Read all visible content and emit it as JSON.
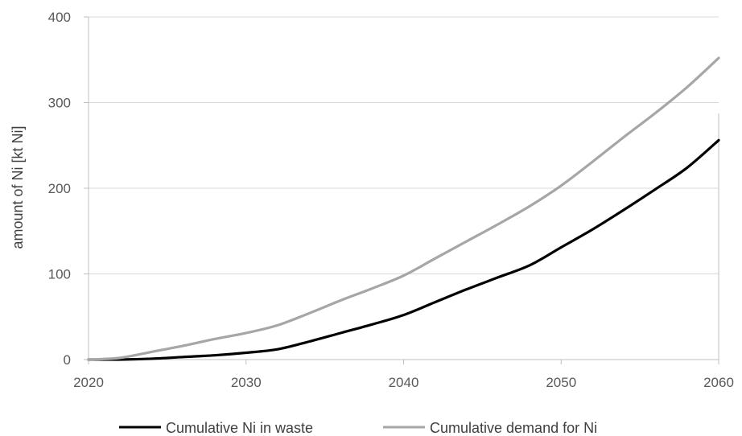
{
  "chart_data": {
    "type": "line",
    "title": "",
    "xlabel": "",
    "ylabel": "amount of Ni [kt Ni]",
    "xlim": [
      2020,
      2060
    ],
    "ylim": [
      0,
      400
    ],
    "x_ticks": [
      2020,
      2030,
      2040,
      2050,
      2060
    ],
    "y_ticks": [
      0,
      100,
      200,
      300,
      400
    ],
    "grid": "horizontal",
    "legend_position": "bottom",
    "series": [
      {
        "name": "Cumulative Ni in waste",
        "color": "#000000",
        "x": [
          2020,
          2022,
          2024,
          2026,
          2028,
          2030,
          2032,
          2034,
          2036,
          2038,
          2040,
          2042,
          2044,
          2046,
          2048,
          2050,
          2052,
          2054,
          2056,
          2058,
          2060
        ],
        "values": [
          0,
          0,
          1,
          3,
          5,
          8,
          12,
          21,
          31,
          41,
          52,
          67,
          82,
          96,
          110,
          131,
          152,
          175,
          199,
          224,
          256
        ]
      },
      {
        "name": "Cumulative demand for Ni",
        "color": "#a6a6a6",
        "x": [
          2020,
          2022,
          2024,
          2026,
          2028,
          2030,
          2032,
          2034,
          2036,
          2038,
          2040,
          2042,
          2044,
          2046,
          2048,
          2050,
          2052,
          2054,
          2056,
          2058,
          2060
        ],
        "values": [
          0,
          2,
          9,
          16,
          24,
          31,
          40,
          54,
          69,
          83,
          98,
          118,
          138,
          158,
          179,
          203,
          231,
          260,
          288,
          318,
          352
        ]
      }
    ]
  }
}
